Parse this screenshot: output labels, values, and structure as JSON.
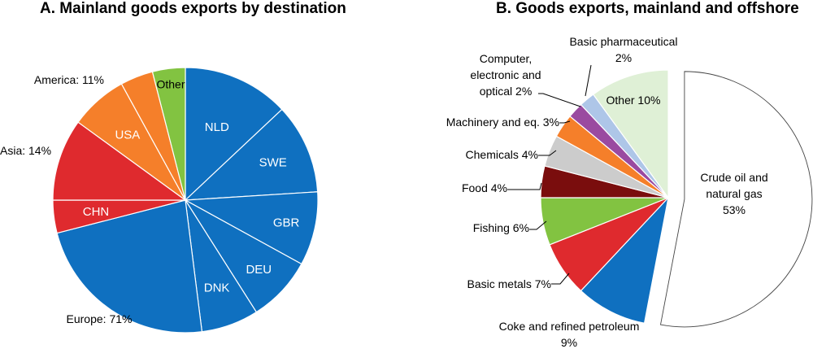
{
  "chart_data": [
    {
      "type": "pie",
      "title": "A. Mainland goods exports by destination",
      "slices": [
        {
          "label": "NLD",
          "value": 13,
          "color": "#0f70c0"
        },
        {
          "label": "SWE",
          "value": 11,
          "color": "#0f70c0"
        },
        {
          "label": "GBR",
          "value": 9,
          "color": "#0f70c0"
        },
        {
          "label": "DEU",
          "value": 8,
          "color": "#0f70c0"
        },
        {
          "label": "DNK",
          "value": 7,
          "color": "#0f70c0"
        },
        {
          "label": "",
          "value": 23,
          "color": "#0f70c0"
        },
        {
          "label": "CHN",
          "value": 4,
          "color": "#df2a2e"
        },
        {
          "label": "",
          "value": 10,
          "color": "#df2a2e"
        },
        {
          "label": "USA",
          "value": 7,
          "color": "#f57f2a"
        },
        {
          "label": "",
          "value": 4,
          "color": "#f57f2a"
        },
        {
          "label": "Other",
          "value": 4,
          "color": "#82c341"
        }
      ],
      "group_labels": [
        "Europe: 71%",
        "Asia: 14%",
        "America: 11%"
      ]
    },
    {
      "type": "pie",
      "title": "B. Goods exports, mainland and offshore",
      "slices": [
        {
          "label": "Crude oil and natural gas 53%",
          "lines": [
            "Crude oil and",
            "natural gas",
            "53%"
          ],
          "value": 53,
          "color": "#ffffff",
          "exploded": true
        },
        {
          "label": "Coke and refined petroleum 9%",
          "lines": [
            "Coke and refined petroleum",
            "9%"
          ],
          "value": 9,
          "color": "#0f70c0"
        },
        {
          "label": "Basic metals 7%",
          "lines": [
            "Basic metals 7%"
          ],
          "value": 7,
          "color": "#df2a2e"
        },
        {
          "label": "Fishing 6%",
          "lines": [
            "Fishing 6%"
          ],
          "value": 6,
          "color": "#82c341"
        },
        {
          "label": "Food 4%",
          "lines": [
            "Food 4%"
          ],
          "value": 4,
          "color": "#7a0d0d"
        },
        {
          "label": "Chemicals 4%",
          "lines": [
            "Chemicals 4%"
          ],
          "value": 4,
          "color": "#cccccc"
        },
        {
          "label": "Machinery and eq. 3%",
          "lines": [
            "Machinery and eq. 3%"
          ],
          "value": 3,
          "color": "#f57f2a"
        },
        {
          "label": "Computer, electronic and optical 2%",
          "lines": [
            "Computer,",
            "electronic and",
            "optical 2%"
          ],
          "value": 2,
          "color": "#9a4aa0"
        },
        {
          "label": "Basic pharmaceutical 2%",
          "lines": [
            "Basic pharmaceutical",
            "2%"
          ],
          "value": 2,
          "color": "#aec6e8"
        },
        {
          "label": "Other 10%",
          "lines": [
            "Other 10%"
          ],
          "value": 10,
          "color": "#dff0d6"
        }
      ]
    }
  ]
}
